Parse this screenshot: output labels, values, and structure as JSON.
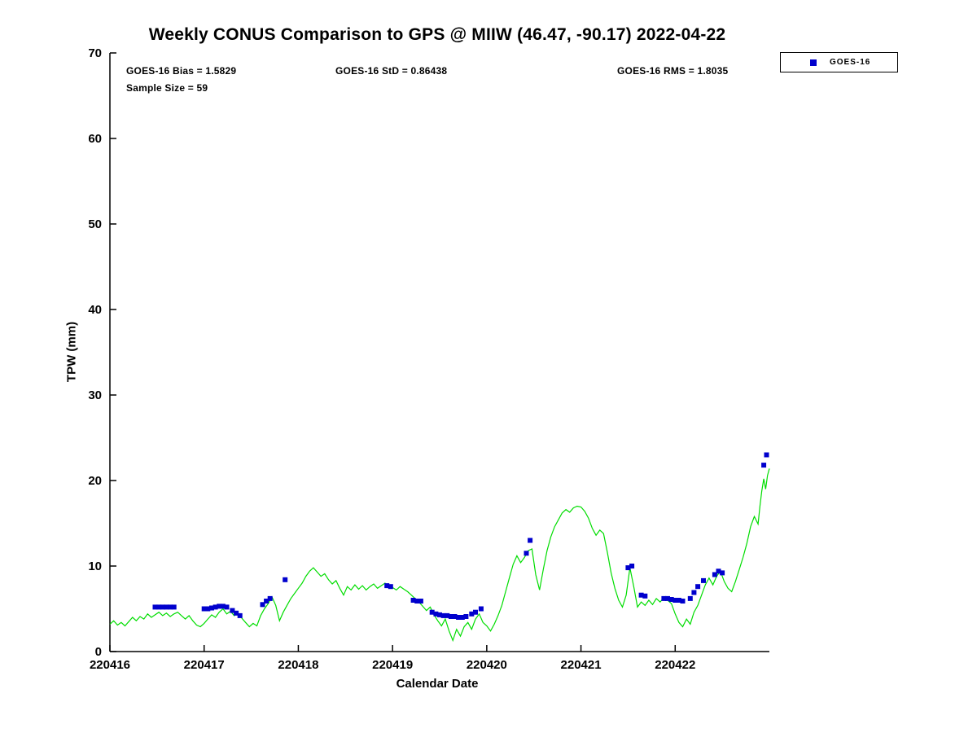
{
  "chart_data": {
    "type": "line",
    "title": "Weekly CONUS Comparison to GPS @ MIIW (46.47, -90.17) 2022-04-22",
    "xlabel": "Calendar Date",
    "ylabel": "TPW (mm)",
    "ylim": [
      0,
      70
    ],
    "y_ticks": [
      0,
      10,
      20,
      30,
      40,
      50,
      60,
      70
    ],
    "xlim_days": [
      0,
      7
    ],
    "x_ticks_days": [
      0,
      1,
      2,
      3,
      4,
      5,
      6
    ],
    "x_tick_labels": [
      "220416",
      "220417",
      "220418",
      "220419",
      "220420",
      "220421",
      "220422"
    ],
    "grid": false,
    "legend_position": "top-right",
    "annotations": {
      "bias": "GOES-16 Bias = 1.5829",
      "std": "GOES-16 StD = 0.86438",
      "rms": "GOES-16 RMS = 1.8035",
      "sample": "Sample Size = 59"
    },
    "legend": {
      "label": "GOES-16"
    },
    "colors": {
      "gps_line": "#00dd00",
      "goes_marker": "#0000cd",
      "axis": "#000000"
    },
    "series": [
      {
        "name": "GPS",
        "type": "line",
        "color_key": "gps_line",
        "points": [
          [
            0.0,
            3.2
          ],
          [
            0.04,
            3.6
          ],
          [
            0.08,
            3.1
          ],
          [
            0.12,
            3.4
          ],
          [
            0.16,
            3.0
          ],
          [
            0.2,
            3.5
          ],
          [
            0.24,
            4.0
          ],
          [
            0.28,
            3.6
          ],
          [
            0.32,
            4.1
          ],
          [
            0.36,
            3.8
          ],
          [
            0.4,
            4.4
          ],
          [
            0.44,
            4.0
          ],
          [
            0.48,
            4.3
          ],
          [
            0.52,
            4.6
          ],
          [
            0.56,
            4.2
          ],
          [
            0.6,
            4.5
          ],
          [
            0.64,
            4.1
          ],
          [
            0.68,
            4.4
          ],
          [
            0.72,
            4.6
          ],
          [
            0.76,
            4.2
          ],
          [
            0.8,
            3.8
          ],
          [
            0.84,
            4.2
          ],
          [
            0.88,
            3.6
          ],
          [
            0.92,
            3.1
          ],
          [
            0.96,
            2.9
          ],
          [
            1.0,
            3.3
          ],
          [
            1.04,
            3.8
          ],
          [
            1.08,
            4.3
          ],
          [
            1.12,
            4.0
          ],
          [
            1.16,
            4.6
          ],
          [
            1.2,
            5.0
          ],
          [
            1.24,
            4.4
          ],
          [
            1.28,
            4.7
          ],
          [
            1.32,
            4.2
          ],
          [
            1.36,
            4.5
          ],
          [
            1.4,
            3.9
          ],
          [
            1.44,
            3.4
          ],
          [
            1.48,
            2.9
          ],
          [
            1.52,
            3.3
          ],
          [
            1.56,
            3.0
          ],
          [
            1.6,
            4.2
          ],
          [
            1.64,
            5.0
          ],
          [
            1.68,
            5.6
          ],
          [
            1.72,
            6.4
          ],
          [
            1.76,
            5.4
          ],
          [
            1.8,
            3.6
          ],
          [
            1.84,
            4.6
          ],
          [
            1.88,
            5.4
          ],
          [
            1.92,
            6.2
          ],
          [
            1.96,
            6.8
          ],
          [
            2.0,
            7.4
          ],
          [
            2.04,
            8.0
          ],
          [
            2.08,
            8.8
          ],
          [
            2.12,
            9.4
          ],
          [
            2.16,
            9.8
          ],
          [
            2.2,
            9.3
          ],
          [
            2.24,
            8.8
          ],
          [
            2.28,
            9.1
          ],
          [
            2.32,
            8.4
          ],
          [
            2.36,
            7.9
          ],
          [
            2.4,
            8.3
          ],
          [
            2.44,
            7.4
          ],
          [
            2.48,
            6.6
          ],
          [
            2.52,
            7.6
          ],
          [
            2.56,
            7.2
          ],
          [
            2.6,
            7.8
          ],
          [
            2.64,
            7.3
          ],
          [
            2.68,
            7.7
          ],
          [
            2.72,
            7.2
          ],
          [
            2.76,
            7.6
          ],
          [
            2.8,
            7.9
          ],
          [
            2.84,
            7.4
          ],
          [
            2.88,
            7.7
          ],
          [
            2.92,
            8.0
          ],
          [
            2.96,
            7.6
          ],
          [
            3.0,
            7.5
          ],
          [
            3.04,
            7.2
          ],
          [
            3.08,
            7.6
          ],
          [
            3.12,
            7.3
          ],
          [
            3.16,
            7.0
          ],
          [
            3.2,
            6.6
          ],
          [
            3.24,
            6.2
          ],
          [
            3.28,
            5.8
          ],
          [
            3.32,
            5.3
          ],
          [
            3.36,
            4.8
          ],
          [
            3.4,
            5.2
          ],
          [
            3.44,
            4.3
          ],
          [
            3.48,
            3.6
          ],
          [
            3.52,
            3.0
          ],
          [
            3.56,
            3.8
          ],
          [
            3.6,
            2.4
          ],
          [
            3.64,
            1.3
          ],
          [
            3.68,
            2.6
          ],
          [
            3.72,
            1.8
          ],
          [
            3.76,
            2.9
          ],
          [
            3.8,
            3.4
          ],
          [
            3.84,
            2.6
          ],
          [
            3.88,
            3.8
          ],
          [
            3.92,
            4.4
          ],
          [
            3.96,
            3.4
          ],
          [
            4.0,
            3.0
          ],
          [
            4.04,
            2.4
          ],
          [
            4.08,
            3.2
          ],
          [
            4.12,
            4.2
          ],
          [
            4.16,
            5.4
          ],
          [
            4.2,
            7.0
          ],
          [
            4.24,
            8.6
          ],
          [
            4.28,
            10.2
          ],
          [
            4.32,
            11.2
          ],
          [
            4.36,
            10.4
          ],
          [
            4.4,
            11.0
          ],
          [
            4.44,
            11.8
          ],
          [
            4.48,
            12.0
          ],
          [
            4.52,
            9.0
          ],
          [
            4.56,
            7.2
          ],
          [
            4.6,
            9.6
          ],
          [
            4.64,
            11.8
          ],
          [
            4.68,
            13.4
          ],
          [
            4.72,
            14.6
          ],
          [
            4.76,
            15.4
          ],
          [
            4.8,
            16.2
          ],
          [
            4.84,
            16.6
          ],
          [
            4.88,
            16.3
          ],
          [
            4.92,
            16.8
          ],
          [
            4.96,
            17.0
          ],
          [
            5.0,
            16.9
          ],
          [
            5.04,
            16.4
          ],
          [
            5.08,
            15.6
          ],
          [
            5.12,
            14.4
          ],
          [
            5.16,
            13.6
          ],
          [
            5.2,
            14.2
          ],
          [
            5.24,
            13.8
          ],
          [
            5.28,
            11.6
          ],
          [
            5.32,
            9.2
          ],
          [
            5.36,
            7.4
          ],
          [
            5.4,
            6.0
          ],
          [
            5.44,
            5.2
          ],
          [
            5.48,
            6.6
          ],
          [
            5.52,
            9.8
          ],
          [
            5.56,
            7.6
          ],
          [
            5.6,
            5.2
          ],
          [
            5.64,
            5.8
          ],
          [
            5.68,
            5.4
          ],
          [
            5.72,
            6.0
          ],
          [
            5.76,
            5.5
          ],
          [
            5.8,
            6.2
          ],
          [
            5.84,
            5.8
          ],
          [
            5.88,
            6.3
          ],
          [
            5.92,
            6.0
          ],
          [
            5.96,
            5.6
          ],
          [
            6.0,
            4.4
          ],
          [
            6.04,
            3.4
          ],
          [
            6.08,
            2.9
          ],
          [
            6.12,
            3.8
          ],
          [
            6.16,
            3.2
          ],
          [
            6.2,
            4.6
          ],
          [
            6.24,
            5.4
          ],
          [
            6.28,
            6.6
          ],
          [
            6.32,
            7.8
          ],
          [
            6.36,
            8.6
          ],
          [
            6.4,
            7.8
          ],
          [
            6.44,
            8.8
          ],
          [
            6.48,
            9.4
          ],
          [
            6.52,
            8.2
          ],
          [
            6.56,
            7.4
          ],
          [
            6.6,
            7.0
          ],
          [
            6.64,
            8.2
          ],
          [
            6.68,
            9.6
          ],
          [
            6.72,
            11.0
          ],
          [
            6.76,
            12.6
          ],
          [
            6.8,
            14.6
          ],
          [
            6.84,
            15.8
          ],
          [
            6.88,
            14.9
          ],
          [
            6.9,
            17.0
          ],
          [
            6.92,
            18.8
          ],
          [
            6.94,
            20.2
          ],
          [
            6.96,
            19.0
          ],
          [
            6.98,
            20.6
          ],
          [
            7.0,
            21.4
          ]
        ]
      },
      {
        "name": "GOES-16",
        "type": "scatter",
        "color_key": "goes_marker",
        "points": [
          [
            0.48,
            5.2
          ],
          [
            0.52,
            5.2
          ],
          [
            0.56,
            5.2
          ],
          [
            0.6,
            5.2
          ],
          [
            0.64,
            5.2
          ],
          [
            0.68,
            5.2
          ],
          [
            1.0,
            5.0
          ],
          [
            1.04,
            5.0
          ],
          [
            1.08,
            5.1
          ],
          [
            1.12,
            5.2
          ],
          [
            1.16,
            5.3
          ],
          [
            1.2,
            5.3
          ],
          [
            1.24,
            5.2
          ],
          [
            1.3,
            4.8
          ],
          [
            1.34,
            4.5
          ],
          [
            1.38,
            4.2
          ],
          [
            1.62,
            5.5
          ],
          [
            1.66,
            5.9
          ],
          [
            1.7,
            6.2
          ],
          [
            1.86,
            8.4
          ],
          [
            2.94,
            7.7
          ],
          [
            2.98,
            7.6
          ],
          [
            3.22,
            6.0
          ],
          [
            3.26,
            5.9
          ],
          [
            3.3,
            5.9
          ],
          [
            3.42,
            4.6
          ],
          [
            3.46,
            4.4
          ],
          [
            3.5,
            4.3
          ],
          [
            3.54,
            4.2
          ],
          [
            3.58,
            4.2
          ],
          [
            3.62,
            4.1
          ],
          [
            3.66,
            4.1
          ],
          [
            3.7,
            4.0
          ],
          [
            3.74,
            4.0
          ],
          [
            3.78,
            4.1
          ],
          [
            3.84,
            4.4
          ],
          [
            3.88,
            4.6
          ],
          [
            3.94,
            5.0
          ],
          [
            4.42,
            11.5
          ],
          [
            4.46,
            13.0
          ],
          [
            5.5,
            9.8
          ],
          [
            5.54,
            10.0
          ],
          [
            5.64,
            6.6
          ],
          [
            5.68,
            6.5
          ],
          [
            5.88,
            6.2
          ],
          [
            5.92,
            6.2
          ],
          [
            5.96,
            6.1
          ],
          [
            6.0,
            6.0
          ],
          [
            6.04,
            6.0
          ],
          [
            6.08,
            5.9
          ],
          [
            6.16,
            6.2
          ],
          [
            6.2,
            6.9
          ],
          [
            6.24,
            7.6
          ],
          [
            6.3,
            8.3
          ],
          [
            6.42,
            9.0
          ],
          [
            6.46,
            9.4
          ],
          [
            6.5,
            9.2
          ],
          [
            6.94,
            21.8
          ],
          [
            6.97,
            23.0
          ]
        ]
      }
    ]
  }
}
